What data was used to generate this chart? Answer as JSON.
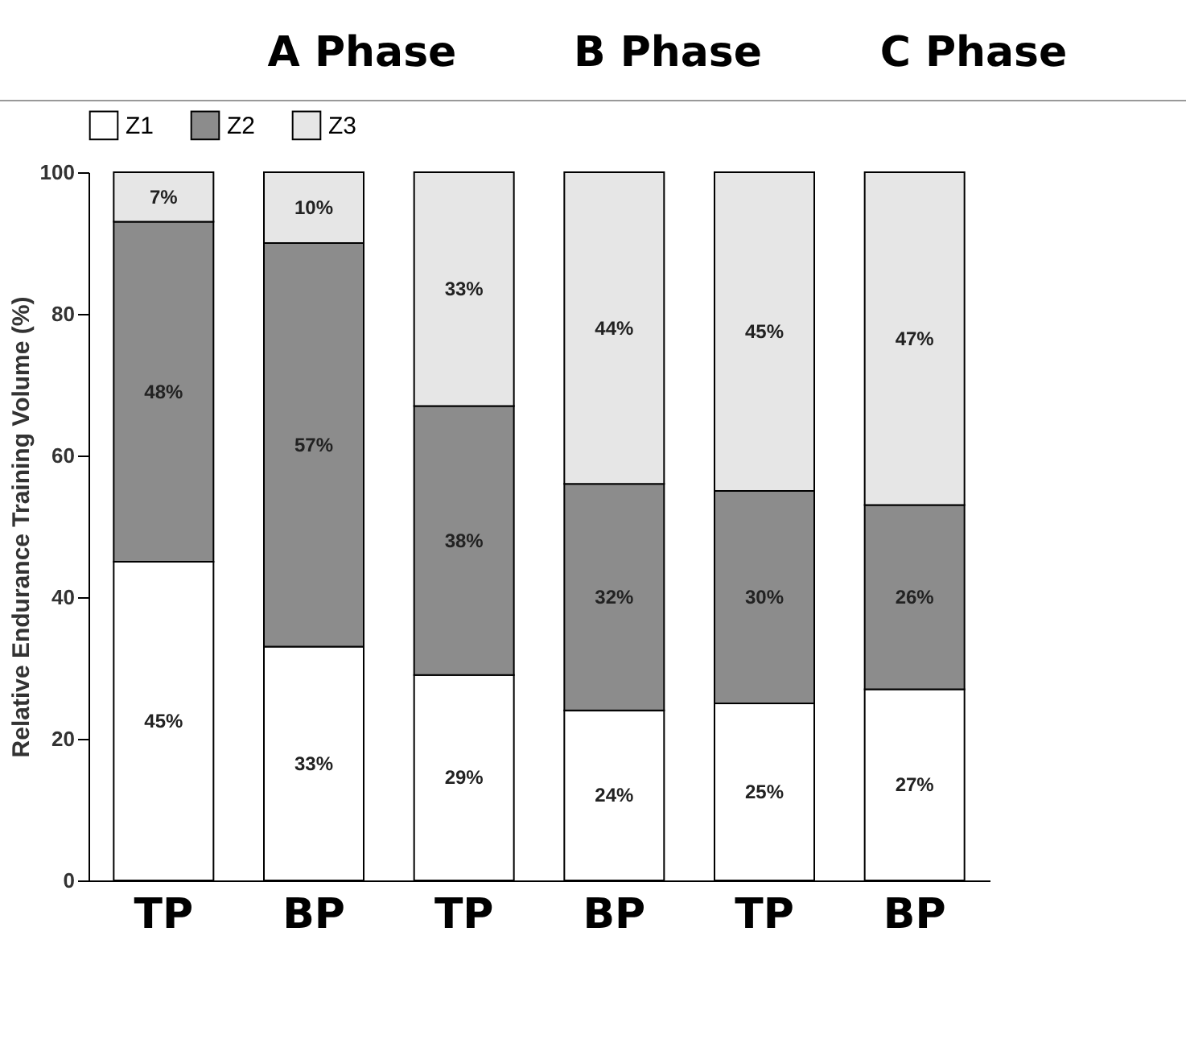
{
  "chart_data": {
    "type": "bar",
    "stacked": true,
    "ylabel": "Relative Endurance Training Volume (%)",
    "annotations": [
      "A Phase",
      "B Phase",
      "C Phase"
    ],
    "categories": [
      "TP",
      "BP",
      "TP",
      "BP",
      "TP",
      "BP"
    ],
    "series": [
      {
        "name": "Z1",
        "color": "#ffffff",
        "values": [
          45,
          33,
          29,
          24,
          25,
          27
        ],
        "value_labels": [
          "45%",
          "33%",
          "29%",
          "24%",
          "25%",
          "27%"
        ]
      },
      {
        "name": "Z2",
        "color": "#8c8c8c",
        "values": [
          48,
          57,
          38,
          32,
          30,
          26
        ],
        "value_labels": [
          "48%",
          "57%",
          "38%",
          "32%",
          "30%",
          "26%"
        ]
      },
      {
        "name": "Z3",
        "color": "#e6e6e6",
        "values": [
          7,
          10,
          33,
          44,
          45,
          47
        ],
        "value_labels": [
          "7%",
          "10%",
          "33%",
          "44%",
          "45%",
          "47%"
        ]
      }
    ],
    "ylim": [
      0,
      100
    ],
    "yticks": [
      0,
      20,
      40,
      60,
      80,
      100
    ],
    "grid": false,
    "legend": "top"
  }
}
